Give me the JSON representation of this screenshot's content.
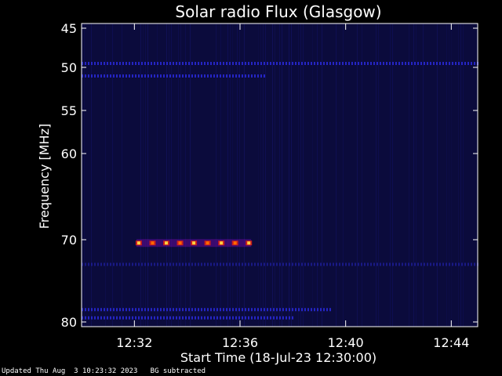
{
  "chart_data": {
    "type": "heatmap",
    "title": "Solar radio Flux (Glasgow)",
    "xlabel": "Start Time (18-Jul-23 12:30:00)",
    "ylabel": "Frequency [MHz]",
    "x_unit": "clock time (HH:MM)",
    "xlim": [
      "12:30:00",
      "12:45:00"
    ],
    "x_ticks": [
      "12:32",
      "12:36",
      "12:40",
      "12:44"
    ],
    "y_unit": "MHz",
    "y_scale": "reversed, nonlinear (top 45 MHz, bottom 80 MHz)",
    "y_ticks": [
      45,
      50,
      55,
      60,
      70,
      80
    ],
    "colormap": [
      "#000000",
      "#14146e",
      "#2a2adc",
      "#6a0aa0",
      "#c81e1e",
      "#ff6a00",
      "#ffd040"
    ],
    "features": [
      {
        "description": "persistent horizontal interference line",
        "freq_mhz": 49.5,
        "start": "12:30",
        "end": "12:45",
        "intensity": "medium"
      },
      {
        "description": "interference band",
        "freq_mhz": 51,
        "start": "12:30",
        "end": "12:37",
        "intensity": "medium"
      },
      {
        "description": "pulsed bright emission",
        "freq_mhz": 70.4,
        "start": "12:32:10",
        "end": "12:36:20",
        "intensity": "high"
      },
      {
        "description": "interference band",
        "freq_mhz": 73,
        "start": "12:30",
        "end": "12:45",
        "intensity": "low"
      },
      {
        "description": "interference band",
        "freq_mhz": 78.5,
        "start": "12:30",
        "end": "12:39:30",
        "intensity": "medium"
      },
      {
        "description": "interference band",
        "freq_mhz": 79.5,
        "start": "12:30",
        "end": "12:38",
        "intensity": "medium"
      }
    ]
  },
  "footer": {
    "updated": "Updated Thu Aug  3 10:23:32 2023",
    "note": "BG subtracted"
  }
}
